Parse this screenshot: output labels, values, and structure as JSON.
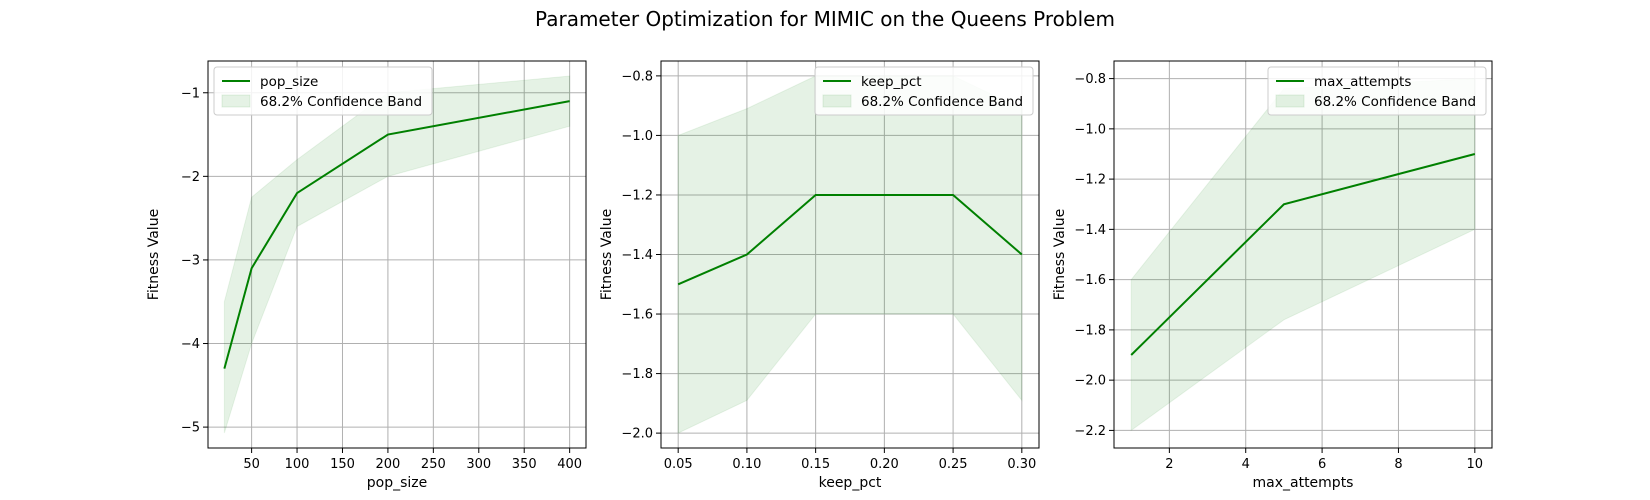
{
  "figure": {
    "title": "Parameter Optimization for MIMIC on the Queens Problem",
    "line_color": "#008000",
    "band_color": "#008000",
    "band_opacity": 0.1,
    "grid_color": "#b0b0b0"
  },
  "chart_data": [
    {
      "type": "line",
      "xlabel": "pop_size",
      "ylabel": "Fitness Value",
      "xlim": [
        2,
        418
      ],
      "ylim": [
        -5.25,
        -0.62
      ],
      "xticks": [
        50,
        100,
        150,
        200,
        250,
        300,
        350,
        400
      ],
      "xtick_labels": [
        "50",
        "100",
        "150",
        "200",
        "250",
        "300",
        "350",
        "400"
      ],
      "yticks": [
        -5,
        -4,
        -3,
        -2,
        -1
      ],
      "ytick_labels": [
        "−5",
        "−4",
        "−3",
        "−2",
        "−1"
      ],
      "grid": true,
      "legend_position": "upper-left",
      "series": [
        {
          "name": "pop_size",
          "x": [
            20,
            50,
            100,
            200,
            400
          ],
          "y": [
            -4.3,
            -3.1,
            -2.2,
            -1.5,
            -1.1
          ],
          "band_lower": [
            -5.07,
            -4.0,
            -2.6,
            -2.0,
            -1.4
          ],
          "band_upper": [
            -3.5,
            -2.25,
            -1.8,
            -1.0,
            -0.8
          ]
        }
      ],
      "band_label": "68.2% Confidence Band"
    },
    {
      "type": "line",
      "xlabel": "keep_pct",
      "ylabel": "Fitness Value",
      "xlim": [
        0.0375,
        0.3125
      ],
      "ylim": [
        -2.05,
        -0.75
      ],
      "xticks": [
        0.05,
        0.1,
        0.15,
        0.2,
        0.25,
        0.3
      ],
      "xtick_labels": [
        "0.05",
        "0.10",
        "0.15",
        "0.20",
        "0.25",
        "0.30"
      ],
      "yticks": [
        -2.0,
        -1.8,
        -1.6,
        -1.4,
        -1.2,
        -1.0,
        -0.8
      ],
      "ytick_labels": [
        "−2.0",
        "−1.8",
        "−1.6",
        "−1.4",
        "−1.2",
        "−1.0",
        "−0.8"
      ],
      "grid": true,
      "legend_position": "upper-right",
      "series": [
        {
          "name": "keep_pct",
          "x": [
            0.05,
            0.1,
            0.15,
            0.25,
            0.3
          ],
          "y": [
            -1.5,
            -1.4,
            -1.2,
            -1.2,
            -1.4
          ],
          "band_lower": [
            -2.0,
            -1.89,
            -1.6,
            -1.6,
            -1.89
          ],
          "band_upper": [
            -1.0,
            -0.91,
            -0.8,
            -0.8,
            -0.91
          ]
        }
      ],
      "band_label": "68.2% Confidence Band"
    },
    {
      "type": "line",
      "xlabel": "max_attempts",
      "ylabel": "Fitness Value",
      "xlim": [
        0.55,
        10.45
      ],
      "ylim": [
        -2.27,
        -0.73
      ],
      "xticks": [
        2,
        4,
        6,
        8,
        10
      ],
      "xtick_labels": [
        "2",
        "4",
        "6",
        "8",
        "10"
      ],
      "yticks": [
        -2.2,
        -2.0,
        -1.8,
        -1.6,
        -1.4,
        -1.2,
        -1.0,
        -0.8
      ],
      "ytick_labels": [
        "−2.2",
        "−2.0",
        "−1.8",
        "−1.6",
        "−1.4",
        "−1.2",
        "−1.0",
        "−0.8"
      ],
      "grid": true,
      "legend_position": "upper-right",
      "series": [
        {
          "name": "max_attempts",
          "x": [
            1,
            5,
            10
          ],
          "y": [
            -1.9,
            -1.3,
            -1.1
          ],
          "band_lower": [
            -2.2,
            -1.76,
            -1.4
          ],
          "band_upper": [
            -1.6,
            -0.84,
            -0.8
          ]
        }
      ],
      "band_label": "68.2% Confidence Band"
    }
  ]
}
